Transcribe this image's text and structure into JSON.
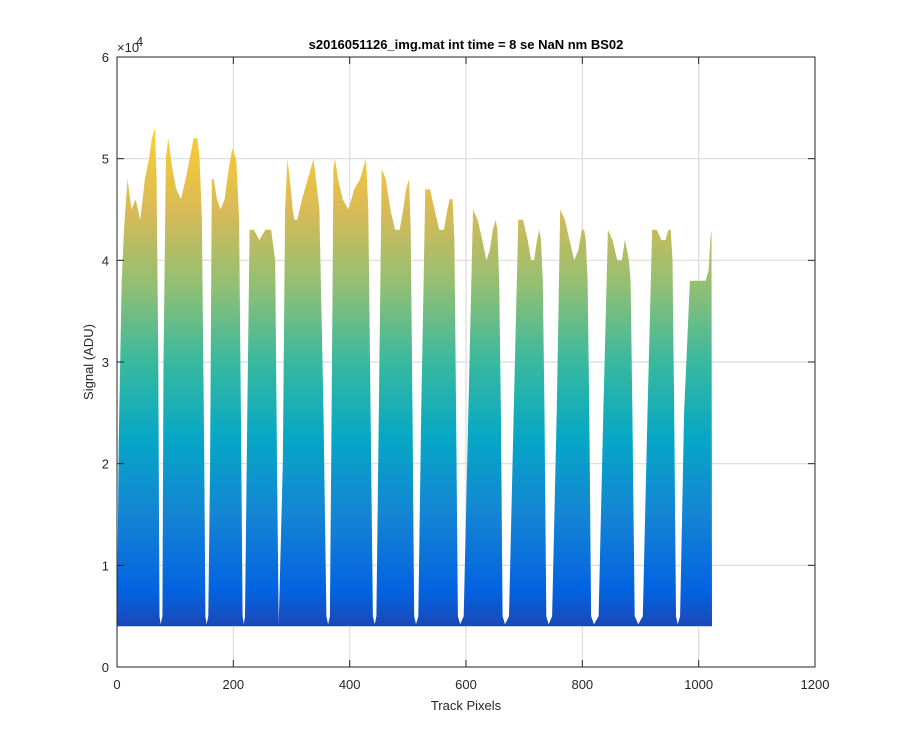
{
  "chart_data": {
    "type": "area",
    "title": "s2016051126_img.mat int time = 8 se  NaN nm BS02",
    "xlabel": "Track Pixels",
    "ylabel": "Signal (ADU)",
    "xlim": [
      0,
      1200
    ],
    "ylim": [
      0,
      60000
    ],
    "x_ticks": [
      0,
      200,
      400,
      600,
      800,
      1000,
      1200
    ],
    "x_tick_labels": [
      "0",
      "200",
      "400",
      "600",
      "800",
      "1000",
      "1200"
    ],
    "y_ticks": [
      0,
      10000,
      20000,
      30000,
      40000,
      50000,
      60000
    ],
    "y_tick_labels": [
      "0",
      "1",
      "2",
      "3",
      "4",
      "5",
      "6"
    ],
    "y_exponent_label": "×10",
    "y_exponent_power": "4",
    "grid": true,
    "colormap": [
      "#352a87",
      "#0363e1",
      "#1485d4",
      "#06a7c6",
      "#38b99e",
      "#92bf73",
      "#d9ba56",
      "#fcce2e",
      "#f9fb0e"
    ],
    "baseline": 4000,
    "series": [
      {
        "x": [
          0,
          3,
          8,
          12,
          18,
          25,
          32,
          40,
          48,
          55,
          60,
          65,
          68,
          71,
          73,
          75,
          78,
          80,
          84,
          88,
          95,
          102,
          110,
          118,
          125,
          132,
          138,
          142,
          146,
          150,
          152,
          154,
          157,
          160,
          163,
          166,
          172,
          178,
          185,
          192,
          198,
          205,
          210,
          213,
          216,
          218,
          220,
          224,
          228,
          235,
          245,
          255,
          265,
          272,
          275,
          278,
          285,
          289,
          293,
          297,
          302,
          305,
          310,
          318,
          328,
          338,
          348,
          355,
          360,
          363,
          366,
          369,
          372,
          375,
          380,
          388,
          398,
          408,
          418,
          428,
          432,
          436,
          440,
          443,
          446,
          450,
          455,
          462,
          470,
          478,
          486,
          492,
          497,
          502,
          505,
          508,
          511,
          514,
          518,
          523,
          530,
          538,
          546,
          554,
          562,
          568,
          572,
          577,
          580,
          583,
          586,
          590,
          596,
          604,
          612,
          620,
          628,
          635,
          641,
          646,
          651,
          654,
          657,
          660,
          663,
          667,
          674,
          682,
          690,
          698,
          706,
          712,
          717,
          722,
          726,
          729,
          732,
          735,
          738,
          742,
          748,
          756,
          762,
          770,
          778,
          786,
          793,
          799,
          803,
          806,
          809,
          812,
          815,
          820,
          828,
          836,
          844,
          852,
          860,
          868,
          873,
          877,
          880,
          883,
          886,
          890,
          896,
          904,
          912,
          920,
          928,
          936,
          943,
          948,
          952,
          955,
          958,
          961,
          964,
          968,
          975,
          985,
          995,
          1005,
          1012,
          1017,
          1020,
          1022,
          1023
        ],
        "y": [
          4000,
          22000,
          38000,
          43000,
          48000,
          45000,
          46000,
          44000,
          48000,
          50000,
          52000,
          53000,
          48000,
          30000,
          5000,
          4200,
          5000,
          30000,
          50000,
          52000,
          49000,
          47000,
          46000,
          48000,
          50000,
          52000,
          52000,
          50000,
          44000,
          20000,
          5000,
          4200,
          5000,
          20000,
          48000,
          48000,
          46000,
          45000,
          46000,
          49000,
          51000,
          50000,
          44000,
          25000,
          5000,
          4200,
          5000,
          25000,
          43000,
          43000,
          42000,
          43000,
          43000,
          40000,
          20000,
          4200,
          20000,
          45000,
          50000,
          48000,
          45000,
          44000,
          44000,
          46000,
          48000,
          50000,
          45000,
          25000,
          5000,
          4200,
          5000,
          25000,
          49000,
          50000,
          48000,
          46000,
          45000,
          47000,
          48000,
          50000,
          45000,
          25000,
          5000,
          4200,
          5000,
          25000,
          49000,
          48000,
          45000,
          43000,
          43000,
          45000,
          47000,
          48000,
          43000,
          25000,
          5000,
          4200,
          5000,
          25000,
          47000,
          47000,
          45000,
          43000,
          43000,
          45000,
          46000,
          46000,
          42000,
          25000,
          5000,
          4200,
          5000,
          25000,
          45000,
          44000,
          42000,
          40000,
          41000,
          43000,
          44000,
          43000,
          38000,
          25000,
          5000,
          4200,
          5000,
          25000,
          44000,
          44000,
          42000,
          40000,
          40000,
          42000,
          43000,
          42000,
          38000,
          25000,
          5000,
          4200,
          5000,
          25000,
          45000,
          44000,
          42000,
          40000,
          41000,
          43000,
          43000,
          42000,
          38000,
          25000,
          5000,
          4200,
          5000,
          25000,
          43000,
          42000,
          40000,
          40000,
          42000,
          41000,
          40000,
          38000,
          25000,
          5000,
          4200,
          5000,
          25000,
          43000,
          43000,
          42000,
          42000,
          43000,
          43000,
          40000,
          25000,
          5000,
          4200,
          5000,
          25000,
          38000,
          38000,
          38000,
          38000,
          39000,
          42000,
          43000,
          4000
        ]
      }
    ]
  }
}
